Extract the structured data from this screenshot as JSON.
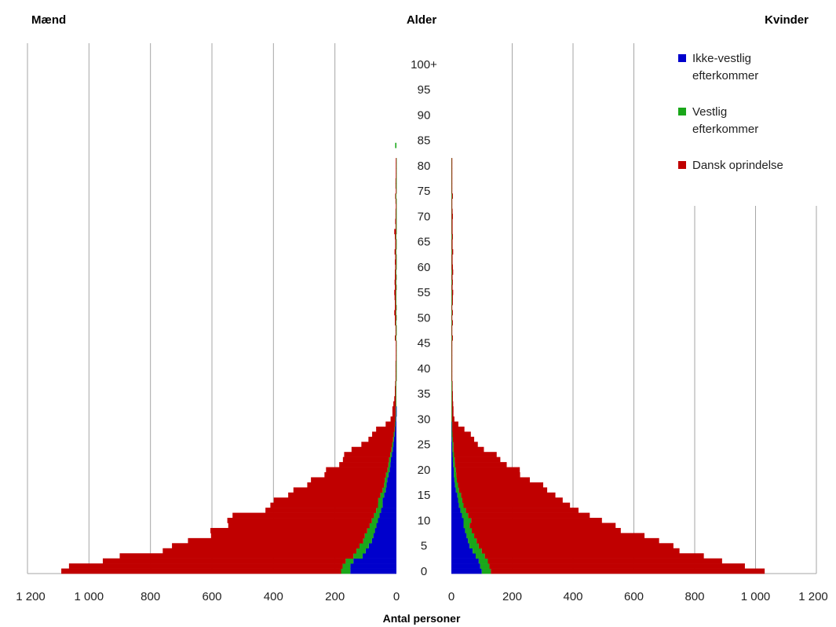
{
  "chart_data": {
    "type": "bar",
    "orientation": "horizontal",
    "subtype": "population-pyramid",
    "title": "",
    "header_left": "Mænd",
    "header_center": "Alder",
    "header_right": "Kvinder",
    "xlabel": "Antal personer",
    "xlim": [
      0,
      1200
    ],
    "x_ticks": [
      0,
      200,
      400,
      600,
      800,
      1000,
      1200
    ],
    "x_tick_labels": [
      "0",
      "200",
      "400",
      "600",
      "800",
      "1 000",
      "1 200"
    ],
    "age_range": [
      0,
      105
    ],
    "age_tick_labels": [
      {
        "age": 0,
        "label": "0"
      },
      {
        "age": 5,
        "label": "5"
      },
      {
        "age": 10,
        "label": "10"
      },
      {
        "age": 15,
        "label": "15"
      },
      {
        "age": 20,
        "label": "20"
      },
      {
        "age": 25,
        "label": "25"
      },
      {
        "age": 30,
        "label": "30"
      },
      {
        "age": 35,
        "label": "35"
      },
      {
        "age": 40,
        "label": "40"
      },
      {
        "age": 45,
        "label": "45"
      },
      {
        "age": 50,
        "label": "50"
      },
      {
        "age": 55,
        "label": "55"
      },
      {
        "age": 60,
        "label": "60"
      },
      {
        "age": 65,
        "label": "65"
      },
      {
        "age": 70,
        "label": "70"
      },
      {
        "age": 75,
        "label": "75"
      },
      {
        "age": 80,
        "label": "80"
      },
      {
        "age": 85,
        "label": "85"
      },
      {
        "age": 90,
        "label": "90"
      },
      {
        "age": 95,
        "label": "95"
      },
      {
        "age": 100,
        "label": "100+"
      }
    ],
    "legend": {
      "position": "top-right",
      "entries": [
        {
          "key": "ikke_vestlig",
          "lines": [
            "Ikke-vestlig",
            "efterkommer"
          ],
          "color": "#0000cc"
        },
        {
          "key": "vestlig",
          "lines": [
            "Vestlig",
            "efterkommer"
          ],
          "color": "#1aa71a"
        },
        {
          "key": "dansk",
          "lines": [
            "Dansk oprindelse"
          ],
          "color": "#c00000"
        }
      ]
    },
    "series_order": [
      "ikke_vestlig",
      "vestlig",
      "dansk"
    ],
    "stacked": true,
    "ages": [
      0,
      1,
      2,
      3,
      4,
      5,
      6,
      7,
      8,
      9,
      10,
      11,
      12,
      13,
      14,
      15,
      16,
      17,
      18,
      19,
      20,
      21,
      22,
      23,
      24,
      25,
      26,
      27,
      28,
      29,
      30,
      31,
      32,
      33,
      34,
      35,
      36,
      37,
      38,
      39,
      40,
      41,
      42,
      43,
      44,
      45,
      46,
      47,
      48,
      49,
      50,
      51,
      52,
      53,
      54,
      55,
      56,
      57,
      58,
      59,
      60,
      61,
      62,
      63,
      64,
      65,
      66,
      67,
      68,
      69,
      70,
      71,
      72,
      73,
      74,
      75,
      76,
      77,
      78,
      79,
      80,
      81,
      82,
      83,
      84
    ],
    "men": {
      "ikke_vestlig": [
        150,
        150,
        140,
        110,
        100,
        90,
        80,
        75,
        70,
        65,
        60,
        55,
        50,
        45,
        45,
        40,
        35,
        32,
        30,
        26,
        22,
        20,
        18,
        15,
        12,
        10,
        8,
        6,
        4,
        3,
        2,
        1,
        1,
        0,
        0,
        0,
        0,
        0,
        0,
        0,
        0,
        0,
        0,
        0,
        0,
        0,
        0,
        0,
        0,
        0,
        0,
        0,
        0,
        0,
        0,
        0,
        0,
        0,
        0,
        0,
        0,
        0,
        0,
        0,
        0,
        0,
        0,
        0,
        0,
        0,
        0,
        0,
        0,
        0,
        0,
        0,
        0,
        0,
        0,
        0,
        0,
        0,
        0,
        0,
        0
      ],
      "vestlig": [
        30,
        25,
        25,
        30,
        30,
        30,
        28,
        28,
        25,
        22,
        20,
        18,
        16,
        15,
        14,
        12,
        10,
        8,
        8,
        8,
        7,
        6,
        6,
        5,
        4,
        4,
        3,
        3,
        2,
        2,
        2,
        2,
        2,
        2,
        2,
        2,
        2,
        2,
        1,
        1,
        1,
        1,
        1,
        1,
        1,
        1,
        2,
        1,
        1,
        2,
        1,
        2,
        1,
        2,
        2,
        2,
        1,
        2,
        1,
        2,
        1,
        1,
        1,
        2,
        1,
        1,
        2,
        1,
        1,
        1,
        1,
        1,
        1,
        1,
        2,
        1,
        1,
        1,
        1,
        1,
        1,
        1,
        0,
        0,
        4
      ],
      "dansk": [
        910,
        890,
        790,
        760,
        630,
        610,
        570,
        500,
        510,
        460,
        470,
        460,
        360,
        350,
        340,
        300,
        290,
        250,
        240,
        200,
        200,
        160,
        150,
        150,
        130,
        100,
        80,
        70,
        60,
        30,
        15,
        10,
        10,
        8,
        5,
        3,
        3,
        2,
        2,
        2,
        2,
        2,
        1,
        1,
        1,
        1,
        3,
        2,
        2,
        3,
        4,
        5,
        4,
        3,
        4,
        5,
        4,
        4,
        4,
        3,
        3,
        4,
        3,
        4,
        3,
        3,
        3,
        6,
        2,
        3,
        2,
        2,
        1,
        2,
        2,
        1,
        2,
        2,
        1,
        1,
        1,
        1,
        0,
        0,
        0
      ]
    },
    "women": {
      "ikke_vestlig": [
        100,
        95,
        90,
        80,
        70,
        60,
        55,
        50,
        45,
        40,
        40,
        35,
        30,
        25,
        22,
        20,
        15,
        12,
        10,
        8,
        8,
        6,
        5,
        4,
        3,
        3,
        2,
        1,
        1,
        1,
        0,
        0,
        0,
        0,
        0,
        0,
        0,
        0,
        0,
        0,
        0,
        0,
        0,
        0,
        0,
        0,
        0,
        0,
        0,
        0,
        0,
        0,
        0,
        0,
        0,
        0,
        0,
        0,
        0,
        0,
        0,
        0,
        0,
        0,
        0,
        0,
        0,
        0,
        0,
        0,
        0,
        0,
        0,
        0,
        0,
        0,
        0,
        0,
        0,
        0,
        0,
        0,
        0,
        0,
        0
      ],
      "vestlig": [
        30,
        30,
        30,
        30,
        30,
        30,
        28,
        25,
        22,
        20,
        25,
        20,
        18,
        15,
        14,
        12,
        10,
        10,
        8,
        8,
        7,
        6,
        6,
        5,
        4,
        4,
        3,
        3,
        2,
        2,
        2,
        2,
        2,
        2,
        2,
        2,
        2,
        2,
        1,
        1,
        1,
        1,
        1,
        1,
        1,
        1,
        2,
        1,
        1,
        2,
        1,
        2,
        1,
        2,
        2,
        2,
        1,
        2,
        1,
        2,
        1,
        1,
        1,
        2,
        1,
        1,
        2,
        1,
        1,
        1,
        1,
        1,
        1,
        1,
        2,
        1,
        1,
        1,
        1,
        1,
        1,
        1,
        0,
        0,
        0
      ],
      "dansk": [
        900,
        840,
        770,
        720,
        650,
        640,
        600,
        560,
        490,
        480,
        430,
        400,
        370,
        350,
        330,
        310,
        290,
        280,
        240,
        210,
        210,
        170,
        150,
        140,
        100,
        80,
        70,
        60,
        40,
        20,
        8,
        5,
        5,
        4,
        3,
        3,
        2,
        2,
        2,
        2,
        2,
        2,
        1,
        1,
        1,
        1,
        3,
        2,
        2,
        3,
        2,
        3,
        2,
        3,
        3,
        4,
        3,
        3,
        3,
        4,
        4,
        3,
        3,
        4,
        3,
        3,
        3,
        3,
        3,
        3,
        4,
        3,
        2,
        2,
        3,
        2,
        2,
        2,
        1,
        1,
        1,
        1,
        0,
        0,
        0
      ]
    }
  }
}
